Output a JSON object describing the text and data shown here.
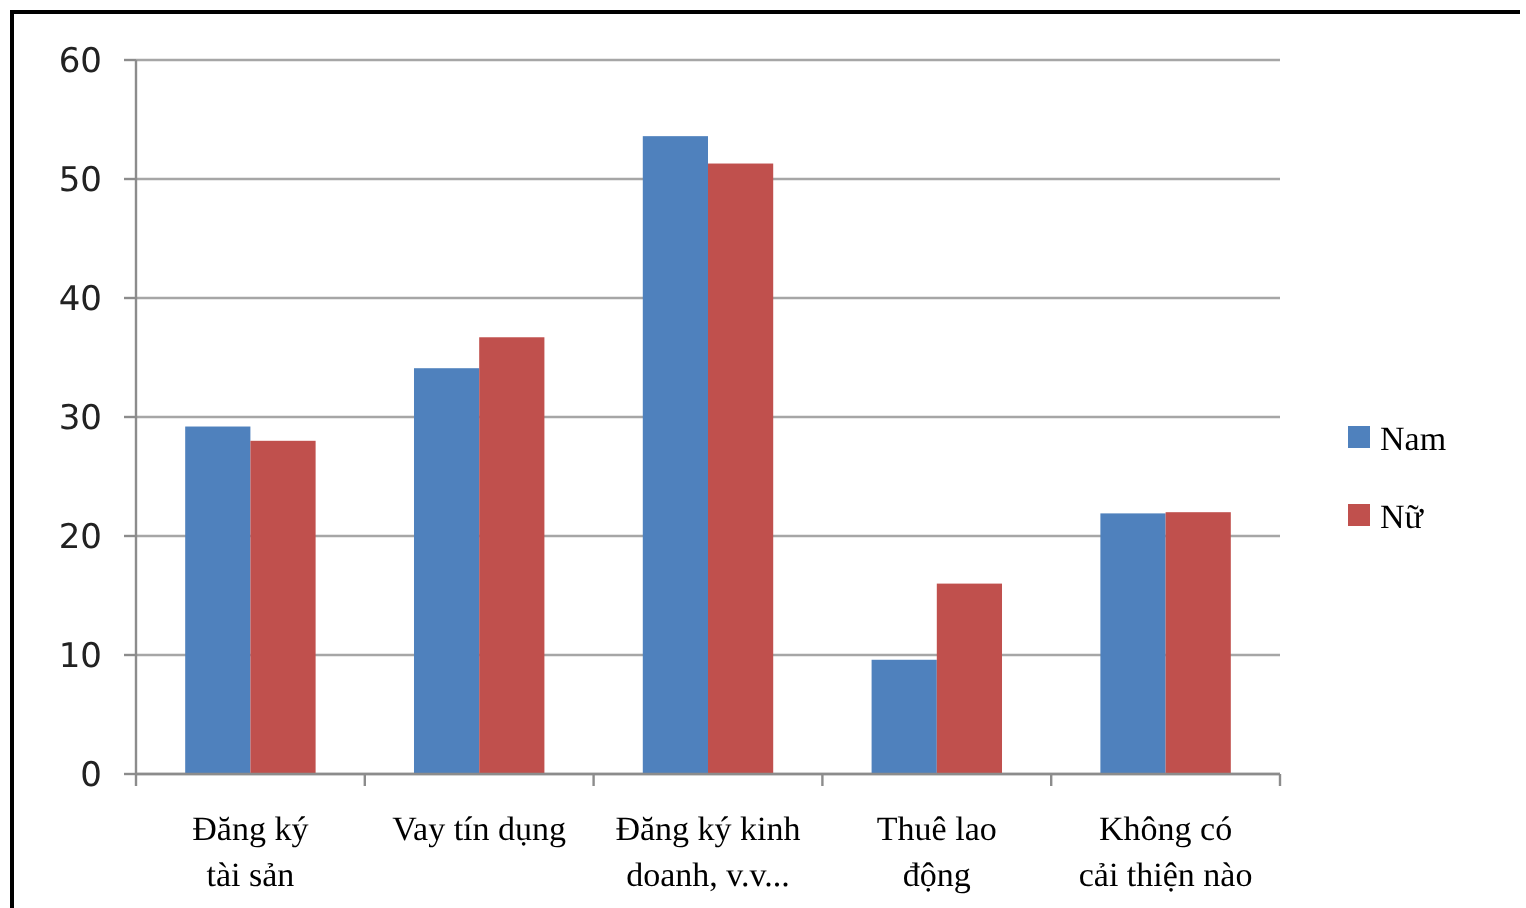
{
  "chart_data": {
    "type": "bar",
    "categories": [
      "Đăng ký\ntài sản",
      "Vay tín dụng",
      "Đăng ký kinh\ndoanh, v.v...",
      "Thuê lao\nđộng",
      "Không có\ncải thiện nào"
    ],
    "series": [
      {
        "name": "Nam",
        "color": "#4f81bd",
        "values": [
          29.2,
          34.1,
          53.6,
          9.6,
          21.9
        ]
      },
      {
        "name": "Nữ",
        "color": "#c0504d",
        "values": [
          28.0,
          36.7,
          51.3,
          16.0,
          22.0
        ]
      }
    ],
    "ylim": [
      0,
      60
    ],
    "yticks": [
      0,
      10,
      20,
      30,
      40,
      50,
      60
    ],
    "grid": "y",
    "legend": "right"
  }
}
